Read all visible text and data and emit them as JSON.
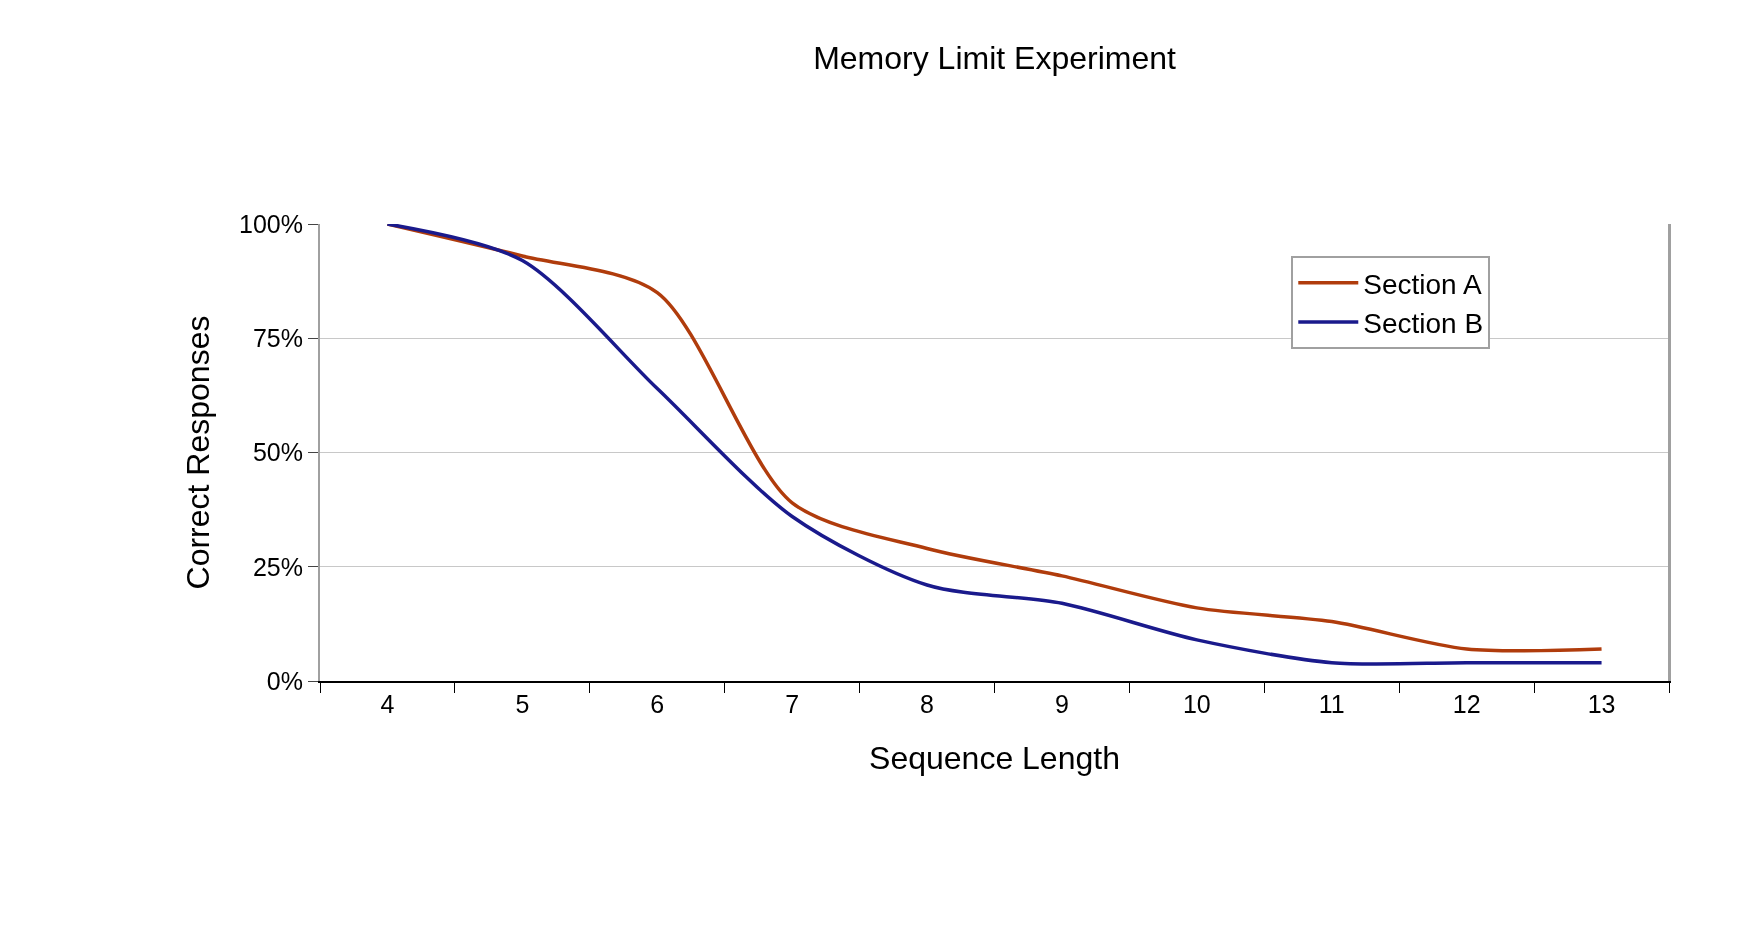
{
  "chart_data": {
    "type": "line",
    "title": "Memory Limit Experiment",
    "xlabel": "Sequence Length",
    "ylabel": "Correct Responses",
    "categories": [
      "4",
      "5",
      "6",
      "7",
      "8",
      "9",
      "10",
      "11",
      "12",
      "13"
    ],
    "series": [
      {
        "name": "Section A",
        "color": "#b03c0c",
        "values": [
          100,
          93,
          85,
          39,
          29,
          23,
          16,
          13,
          7,
          7
        ]
      },
      {
        "name": "Section B",
        "color": "#1a1a8c",
        "values": [
          100,
          92,
          64,
          36,
          21,
          17,
          9,
          4,
          4,
          4
        ]
      }
    ],
    "ylim": [
      0,
      100
    ],
    "yticks": [
      {
        "value": 0,
        "label": "0%"
      },
      {
        "value": 25,
        "label": "25%"
      },
      {
        "value": 50,
        "label": "50%"
      },
      {
        "value": 75,
        "label": "75%"
      },
      {
        "value": 100,
        "label": "100%"
      }
    ],
    "grid": "y",
    "legend": "top right"
  }
}
